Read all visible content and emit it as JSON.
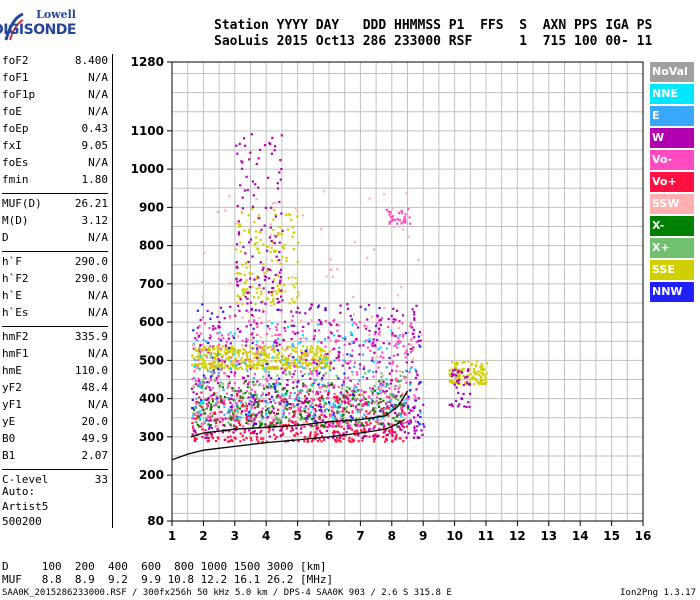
{
  "logo": {
    "line1": "Lowell",
    "line2": "DIGISONDE"
  },
  "header": {
    "row1": "Station YYYY DAY   DDD HHMMSS P1  FFS  S  AXN PPS IGA PS",
    "row2": "SaoLuis 2015 Oct13 286 233000 RSF      1  715 100 00- 11"
  },
  "params": [
    {
      "k": "foF2",
      "v": "8.400"
    },
    {
      "k": "foF1",
      "v": "N/A"
    },
    {
      "k": "foF1p",
      "v": "N/A"
    },
    {
      "k": "foE",
      "v": "N/A"
    },
    {
      "k": "foEp",
      "v": "0.43"
    },
    {
      "k": "fxI",
      "v": "9.05"
    },
    {
      "k": "foEs",
      "v": "N/A"
    },
    {
      "k": "fmin",
      "v": "1.80"
    },
    {
      "sep": true
    },
    {
      "k": "MUF(D)",
      "v": "26.21"
    },
    {
      "k": "M(D)",
      "v": "3.12"
    },
    {
      "k": "D",
      "v": "N/A"
    },
    {
      "sep": true
    },
    {
      "k": "h`F",
      "v": "290.0"
    },
    {
      "k": "h`F2",
      "v": "290.0"
    },
    {
      "k": "h`E",
      "v": "N/A"
    },
    {
      "k": "h`Es",
      "v": "N/A"
    },
    {
      "sep": true
    },
    {
      "k": "hmF2",
      "v": "335.9"
    },
    {
      "k": "hmF1",
      "v": "N/A"
    },
    {
      "k": "hmE",
      "v": "110.0"
    },
    {
      "k": "yF2",
      "v": "48.4"
    },
    {
      "k": "yF1",
      "v": "N/A"
    },
    {
      "k": "yE",
      "v": "20.0"
    },
    {
      "k": "B0",
      "v": "49.9"
    },
    {
      "k": "B1",
      "v": "2.07"
    },
    {
      "sep": true
    },
    {
      "k": "C-level",
      "v": "33"
    }
  ],
  "auto": [
    "Auto:",
    "Artist5",
    "500200"
  ],
  "muf_table": {
    "row1": "D     100  200  400  600  800 1000 1500 3000 [km]",
    "row2": "MUF   8.8  8.9  9.2  9.9 10.8 12.2 16.1 26.2 [MHz]"
  },
  "footer": {
    "left": "SAA0K_2015286233000.RSF / 300fx256h 50 kHz 5.0 km / DPS-4 SAA0K 903 / 2.6 S 315.8 E",
    "right": "Ion2Png 1.3.17"
  },
  "legend": [
    {
      "label": "NoVal",
      "color": "#a0a0a0"
    },
    {
      "label": "NNE",
      "color": "#00e8ff"
    },
    {
      "label": "E",
      "color": "#38a8ff"
    },
    {
      "label": "W",
      "color": "#b000b0"
    },
    {
      "label": "Vo-",
      "color": "#ff4cc0"
    },
    {
      "label": "Vo+",
      "color": "#ff1040"
    },
    {
      "label": "SSW",
      "color": "#ffb0b0"
    },
    {
      "label": "X-",
      "color": "#008000"
    },
    {
      "label": "X+",
      "color": "#70c070"
    },
    {
      "label": "SSE",
      "color": "#d0d000"
    },
    {
      "label": "NNW",
      "color": "#2020ff"
    }
  ],
  "chart_data": {
    "type": "scatter",
    "xlabel": "",
    "ylabel": "",
    "xlim": [
      1,
      16
    ],
    "ylim": [
      80,
      1280
    ],
    "x_ticks": [
      1,
      2,
      3,
      4,
      5,
      6,
      7,
      8,
      9,
      10,
      11,
      12,
      13,
      14,
      15,
      16
    ],
    "y_ticks": [
      80,
      200,
      300,
      400,
      500,
      600,
      700,
      800,
      900,
      1000,
      1100,
      1280
    ],
    "grid": true,
    "legend_position": "right",
    "profile_curve": {
      "x": [
        1.0,
        1.5,
        2.0,
        3.0,
        4.0,
        5.0,
        6.0,
        7.0,
        7.8,
        8.2,
        8.4
      ],
      "y": [
        240,
        255,
        265,
        275,
        285,
        292,
        300,
        310,
        320,
        335,
        345
      ]
    },
    "trace_curve": {
      "x": [
        1.6,
        2.0,
        3.0,
        4.0,
        5.0,
        6.0,
        7.0,
        7.8,
        8.2,
        8.5
      ],
      "y": [
        300,
        310,
        320,
        325,
        330,
        340,
        345,
        355,
        380,
        420
      ]
    },
    "clusters": [
      {
        "name": "Vo+",
        "color": "#ff1040",
        "x": [
          1.6,
          8.5
        ],
        "y": [
          290,
          420
        ],
        "n": 500
      },
      {
        "name": "Vo-",
        "color": "#ff4cc0",
        "x": [
          1.6,
          8.8
        ],
        "y": [
          330,
          620
        ],
        "n": 500
      },
      {
        "name": "W",
        "color": "#b000b0",
        "x": [
          1.6,
          9.0
        ],
        "y": [
          300,
          650
        ],
        "n": 450
      },
      {
        "name": "SSE",
        "color": "#d0d000",
        "x": [
          1.6,
          6.0
        ],
        "y": [
          480,
          540
        ],
        "n": 400
      },
      {
        "name": "SSE",
        "color": "#d0d000",
        "x": [
          3.0,
          5.0
        ],
        "y": [
          650,
          900
        ],
        "n": 150
      },
      {
        "name": "SSE",
        "color": "#d0d000",
        "x": [
          9.8,
          11.0
        ],
        "y": [
          440,
          500
        ],
        "n": 120
      },
      {
        "name": "X-",
        "color": "#008000",
        "x": [
          1.6,
          8.5
        ],
        "y": [
          330,
          450
        ],
        "n": 200
      },
      {
        "name": "X+",
        "color": "#70c070",
        "x": [
          1.6,
          8.5
        ],
        "y": [
          340,
          480
        ],
        "n": 150
      },
      {
        "name": "E",
        "color": "#38a8ff",
        "x": [
          1.6,
          8.5
        ],
        "y": [
          350,
          560
        ],
        "n": 120
      },
      {
        "name": "NNE",
        "color": "#00e8ff",
        "x": [
          1.6,
          9.0
        ],
        "y": [
          350,
          600
        ],
        "n": 90
      },
      {
        "name": "NNW",
        "color": "#2020ff",
        "x": [
          1.6,
          9.0
        ],
        "y": [
          330,
          650
        ],
        "n": 100
      },
      {
        "name": "SSW",
        "color": "#ffb0b0",
        "x": [
          1.6,
          9.0
        ],
        "y": [
          330,
          950
        ],
        "n": 120
      },
      {
        "name": "W",
        "color": "#b000b0",
        "x": [
          3.0,
          4.5
        ],
        "y": [
          650,
          1100
        ],
        "n": 120
      },
      {
        "name": "Vo-",
        "color": "#ff4cc0",
        "x": [
          7.8,
          8.6
        ],
        "y": [
          860,
          900
        ],
        "n": 30
      },
      {
        "name": "W",
        "color": "#b000b0",
        "x": [
          9.8,
          10.5
        ],
        "y": [
          380,
          480
        ],
        "n": 40
      }
    ]
  }
}
